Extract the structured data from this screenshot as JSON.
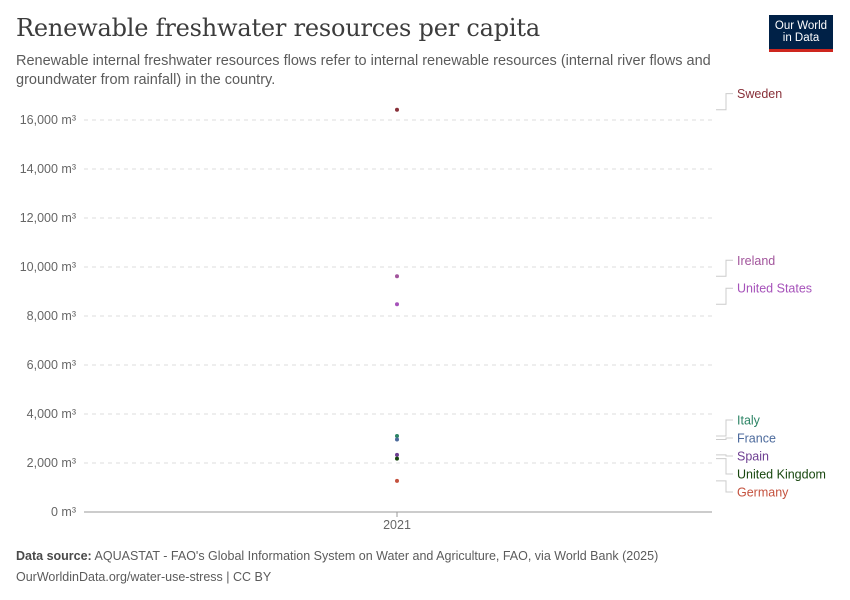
{
  "header": {
    "title": "Renewable freshwater resources per capita",
    "subtitle": "Renewable internal freshwater resources flows refer to internal renewable resources (internal river flows and groundwater from rainfall) in the country.",
    "logo_line1": "Our World",
    "logo_line2": "in Data"
  },
  "footer": {
    "source_label": "Data source:",
    "source_text": "AQUASTAT - FAO's Global Information System on Water and Agriculture, FAO, via World Bank (2025)",
    "url_text": "OurWorldinData.org/water-use-stress | CC BY"
  },
  "colors": {
    "grid": "#dddddd",
    "axis": "#999999",
    "tick_text": "#666666",
    "connector": "#cccccc"
  },
  "chart_data": {
    "type": "scatter",
    "title": "Renewable freshwater resources per capita",
    "xlabel": "",
    "ylabel": "",
    "x_categories": [
      "2021"
    ],
    "ylim": [
      0,
      16500
    ],
    "y_ticks": [
      0,
      2000,
      4000,
      6000,
      8000,
      10000,
      12000,
      14000,
      16000
    ],
    "y_tick_labels": [
      "0 m³",
      "2,000 m³",
      "4,000 m³",
      "6,000 m³",
      "8,000 m³",
      "10,000 m³",
      "12,000 m³",
      "14,000 m³",
      "16,000 m³"
    ],
    "grid": true,
    "legend": "right-labels",
    "series": [
      {
        "name": "Sweden",
        "x": "2021",
        "value": 16420,
        "color": "#883039"
      },
      {
        "name": "Ireland",
        "x": "2021",
        "value": 9620,
        "color": "#a2559c"
      },
      {
        "name": "United States",
        "x": "2021",
        "value": 8480,
        "color": "#a652ba"
      },
      {
        "name": "Italy",
        "x": "2021",
        "value": 3100,
        "color": "#2c8465"
      },
      {
        "name": "France",
        "x": "2021",
        "value": 2960,
        "color": "#4c6a9c"
      },
      {
        "name": "Spain",
        "x": "2021",
        "value": 2330,
        "color": "#6d3e91"
      },
      {
        "name": "United Kingdom",
        "x": "2021",
        "value": 2180,
        "color": "#18470f"
      },
      {
        "name": "Germany",
        "x": "2021",
        "value": 1270,
        "color": "#c4523e"
      }
    ]
  }
}
